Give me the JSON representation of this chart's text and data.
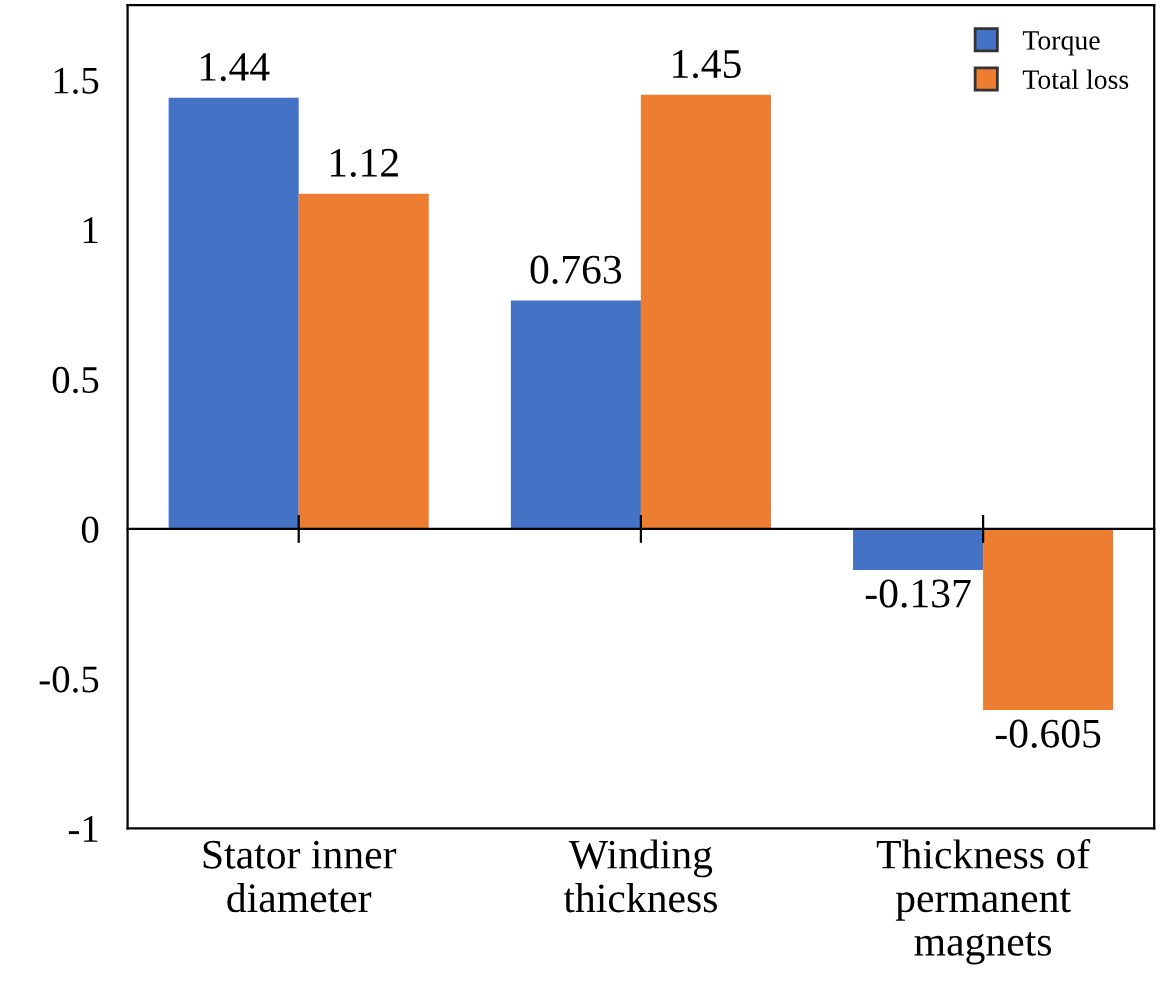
{
  "chart_data": {
    "type": "bar",
    "categories": [
      "Stator inner\ndiameter",
      "Winding\nthickness",
      "Thickness of\npermanent\nmagnets"
    ],
    "series": [
      {
        "name": "Torque",
        "color": "#4472c4",
        "values": [
          1.44,
          0.763,
          -0.137
        ]
      },
      {
        "name": "Total loss",
        "color": "#ed7d31",
        "values": [
          1.12,
          1.45,
          -0.605
        ]
      }
    ],
    "ylim": [
      -1,
      1.75
    ],
    "yticks": [
      {
        "value": -1,
        "label": "-1"
      },
      {
        "value": -0.5,
        "label": "-0.5"
      },
      0,
      0.5,
      1,
      1.5
    ],
    "data_labels": true,
    "legend": "top right"
  }
}
